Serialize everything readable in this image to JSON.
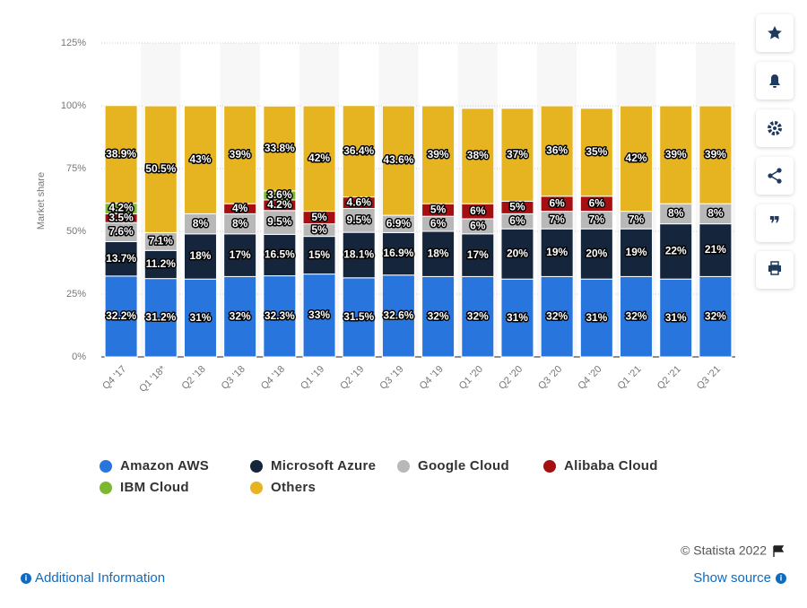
{
  "chart_data": {
    "type": "stacked_bar",
    "y_label": "Market share",
    "categories": [
      "Q4 '17",
      "Q1 '18*",
      "Q2 '18",
      "Q3 '18",
      "Q4 '18",
      "Q1 '19",
      "Q2 '19",
      "Q3 '19",
      "Q4 '19",
      "Q1 '20",
      "Q2 '20",
      "Q3 '20",
      "Q4 '20",
      "Q1 '21",
      "Q2 '21",
      "Q3 '21"
    ],
    "ylim": [
      0,
      125
    ],
    "yticks": [
      {
        "value": 0,
        "label": "0%"
      },
      {
        "value": 25,
        "label": "25%"
      },
      {
        "value": 50,
        "label": "50%"
      },
      {
        "value": 75,
        "label": "75%"
      },
      {
        "value": 100,
        "label": "100%"
      },
      {
        "value": 125,
        "label": "125%"
      }
    ],
    "grid": true,
    "series": [
      {
        "name": "Amazon AWS",
        "color": "#2876dd",
        "values": [
          32.2,
          31.2,
          31,
          32,
          32.3,
          33,
          31.5,
          32.6,
          32,
          32,
          31,
          32,
          31,
          32,
          31,
          32
        ],
        "value_labels": [
          "32.2%",
          "31.2%",
          "31%",
          "32%",
          "32.3%",
          "33%",
          "31.5%",
          "32.6%",
          "32%",
          "32%",
          "31%",
          "32%",
          "31%",
          "32%",
          "31%",
          "32%"
        ]
      },
      {
        "name": "Microsoft Azure",
        "color": "#15253c",
        "values": [
          13.7,
          11.2,
          18,
          17,
          16.5,
          15,
          18.1,
          16.9,
          18,
          17,
          20,
          19,
          20,
          19,
          22,
          21
        ],
        "value_labels": [
          "13.7%",
          "11.2%",
          "18%",
          "17%",
          "16.5%",
          "15%",
          "18.1%",
          "16.9%",
          "18%",
          "17%",
          "20%",
          "19%",
          "20%",
          "19%",
          "22%",
          "21%"
        ]
      },
      {
        "name": "Google Cloud",
        "color": "#b8b8b8",
        "values": [
          7.6,
          7.1,
          8,
          8,
          9.5,
          5,
          9.5,
          6.9,
          6,
          6,
          6,
          7,
          7,
          7,
          8,
          8
        ],
        "value_labels": [
          "7.6%",
          "7.1%",
          "8%",
          "8%",
          "9.5%",
          "5%",
          "9.5%",
          "6.9%",
          "6%",
          "6%",
          "6%",
          "7%",
          "7%",
          "7%",
          "8%",
          "8%"
        ]
      },
      {
        "name": "Alibaba Cloud",
        "color": "#a50f12",
        "values": [
          3.5,
          null,
          null,
          4,
          4.2,
          5,
          4.6,
          null,
          5,
          6,
          5,
          6,
          6,
          null,
          null,
          null
        ],
        "value_labels": [
          "3.5%",
          null,
          null,
          "4%",
          "4.2%",
          "5%",
          "4.6%",
          null,
          "5%",
          "6%",
          "5%",
          "6%",
          "6%",
          null,
          null,
          null
        ]
      },
      {
        "name": "IBM Cloud",
        "color": "#7cb82f",
        "values": [
          4.2,
          null,
          null,
          null,
          3.6,
          null,
          null,
          null,
          null,
          null,
          null,
          null,
          null,
          null,
          null,
          null
        ],
        "value_labels": [
          "4.2%",
          null,
          null,
          null,
          "3.6%",
          null,
          null,
          null,
          null,
          null,
          null,
          null,
          null,
          null,
          null,
          null
        ]
      },
      {
        "name": "Others",
        "color": "#e6b421",
        "values": [
          38.9,
          50.5,
          43,
          39,
          33.8,
          42,
          36.4,
          43.6,
          39,
          38,
          37,
          36,
          35,
          42,
          39,
          39
        ],
        "value_labels": [
          "38.9%",
          "50.5%",
          "43%",
          "39%",
          "33.8%",
          "42%",
          "36.4%",
          "43.6%",
          "39%",
          "38%",
          "37%",
          "36%",
          "35%",
          "42%",
          "39%",
          "39%"
        ]
      }
    ]
  },
  "footer": {
    "copyright": "© Statista 2022",
    "additional_info": "Additional Information",
    "show_source": "Show source"
  }
}
